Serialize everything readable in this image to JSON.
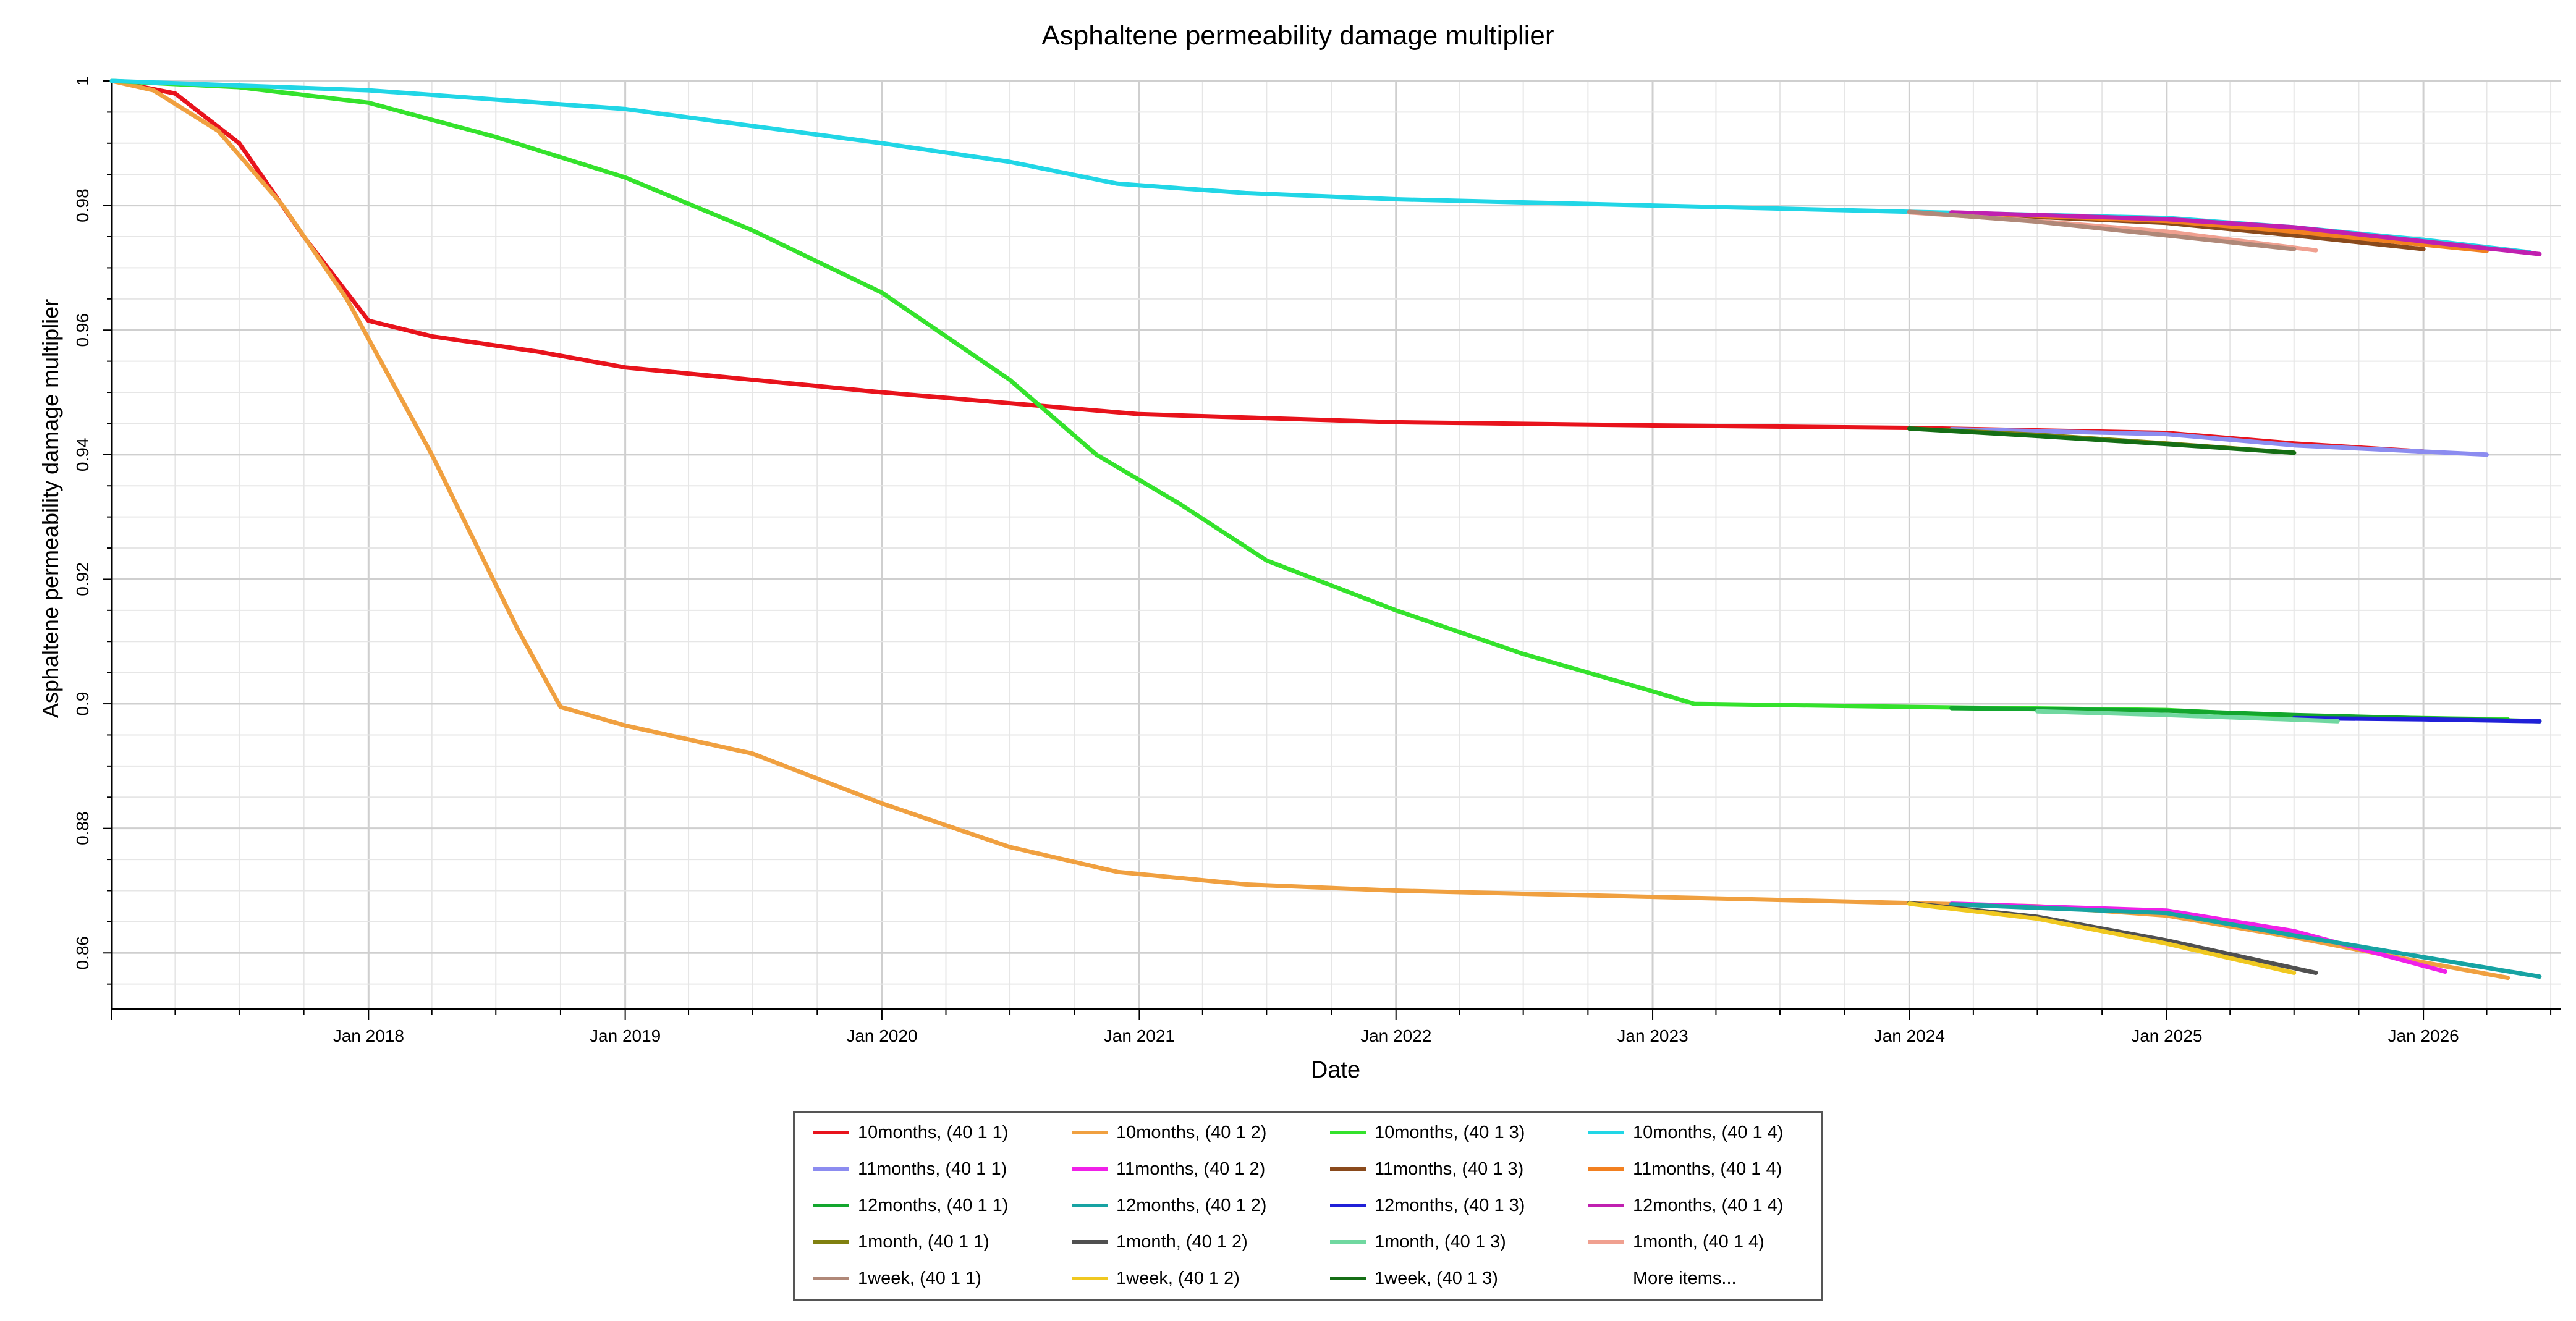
{
  "chart_data": {
    "type": "line",
    "title": "Asphaltene permeability damage multiplier",
    "xlabel": "Date",
    "ylabel": "Asphaltene permeability damage multiplier",
    "xlim": [
      "2017-01-01",
      "2026-07-15"
    ],
    "ylim": [
      0.851,
      1.0
    ],
    "y_ticks": [
      1,
      0.98,
      0.96,
      0.94,
      0.92,
      0.9,
      0.88,
      0.86
    ],
    "y_tick_labels": [
      "1",
      "0.98",
      "0.96",
      "0.94",
      "0.92",
      "0.9",
      "0.88",
      "0.86"
    ],
    "x_ticks": [
      "2018-01-01",
      "2019-01-01",
      "2020-01-01",
      "2021-01-01",
      "2022-01-01",
      "2023-01-01",
      "2024-01-01",
      "2025-01-01",
      "2026-01-01"
    ],
    "x_tick_labels": [
      "Jan 2018",
      "Jan 2019",
      "Jan 2020",
      "Jan 2021",
      "Jan 2022",
      "Jan 2023",
      "Jan 2024",
      "Jan 2025",
      "Jan 2026"
    ],
    "grid": true,
    "legend_position": "bottom-center",
    "legend_more_label": "More items...",
    "series": [
      {
        "name": "10months, (40 1 1)",
        "color": "#e8131c",
        "points": [
          [
            "2017-01-01",
            1.0
          ],
          [
            "2017-04-01",
            0.998
          ],
          [
            "2017-07-01",
            0.99
          ],
          [
            "2017-10-01",
            0.975
          ],
          [
            "2018-01-01",
            0.9615
          ],
          [
            "2018-04-01",
            0.959
          ],
          [
            "2018-09-01",
            0.9565
          ],
          [
            "2019-01-01",
            0.954
          ],
          [
            "2020-01-01",
            0.95
          ],
          [
            "2021-01-01",
            0.9465
          ],
          [
            "2022-01-01",
            0.9452
          ],
          [
            "2023-01-01",
            0.9447
          ],
          [
            "2024-01-01",
            0.9443
          ],
          [
            "2025-01-01",
            0.9435
          ],
          [
            "2025-07-01",
            0.9418
          ],
          [
            "2026-01-01",
            0.9405
          ]
        ]
      },
      {
        "name": "10months, (40 1 2)",
        "color": "#f0a040",
        "points": [
          [
            "2017-01-01",
            1.0
          ],
          [
            "2017-03-01",
            0.9985
          ],
          [
            "2017-06-01",
            0.992
          ],
          [
            "2017-09-01",
            0.98
          ],
          [
            "2017-12-01",
            0.965
          ],
          [
            "2018-04-01",
            0.94
          ],
          [
            "2018-08-01",
            0.912
          ],
          [
            "2018-10-01",
            0.8995
          ],
          [
            "2019-01-01",
            0.8965
          ],
          [
            "2019-07-01",
            0.892
          ],
          [
            "2020-01-01",
            0.884
          ],
          [
            "2020-07-01",
            0.877
          ],
          [
            "2020-12-01",
            0.873
          ],
          [
            "2021-06-01",
            0.871
          ],
          [
            "2022-01-01",
            0.87
          ],
          [
            "2023-01-01",
            0.869
          ],
          [
            "2024-01-01",
            0.868
          ],
          [
            "2024-07-01",
            0.8675
          ],
          [
            "2025-01-01",
            0.866
          ],
          [
            "2025-07-01",
            0.8625
          ],
          [
            "2026-01-01",
            0.8585
          ],
          [
            "2026-05-01",
            0.856
          ]
        ]
      },
      {
        "name": "10months, (40 1 3)",
        "color": "#34e22c",
        "points": [
          [
            "2017-01-01",
            1.0
          ],
          [
            "2017-07-01",
            0.999
          ],
          [
            "2018-01-01",
            0.9965
          ],
          [
            "2018-07-01",
            0.991
          ],
          [
            "2019-01-01",
            0.9845
          ],
          [
            "2019-07-01",
            0.976
          ],
          [
            "2020-01-01",
            0.966
          ],
          [
            "2020-07-01",
            0.952
          ],
          [
            "2020-11-01",
            0.94
          ],
          [
            "2021-03-01",
            0.932
          ],
          [
            "2021-07-01",
            0.923
          ],
          [
            "2022-01-01",
            0.915
          ],
          [
            "2022-07-01",
            0.908
          ],
          [
            "2023-01-01",
            0.902
          ],
          [
            "2023-03-01",
            0.9
          ],
          [
            "2024-01-01",
            0.8995
          ],
          [
            "2025-01-01",
            0.899
          ],
          [
            "2025-07-01",
            0.898
          ],
          [
            "2026-05-01",
            0.8975
          ]
        ]
      },
      {
        "name": "10months, (40 1 4)",
        "color": "#21d6e6",
        "points": [
          [
            "2017-01-01",
            1.0
          ],
          [
            "2018-01-01",
            0.9985
          ],
          [
            "2019-01-01",
            0.9955
          ],
          [
            "2020-01-01",
            0.99
          ],
          [
            "2020-07-01",
            0.987
          ],
          [
            "2020-12-01",
            0.9835
          ],
          [
            "2021-06-01",
            0.982
          ],
          [
            "2022-01-01",
            0.981
          ],
          [
            "2023-01-01",
            0.98
          ],
          [
            "2024-01-01",
            0.979
          ],
          [
            "2024-07-01",
            0.9785
          ],
          [
            "2025-01-01",
            0.978
          ],
          [
            "2025-07-01",
            0.9765
          ],
          [
            "2026-01-01",
            0.9745
          ],
          [
            "2026-06-01",
            0.9725
          ]
        ]
      },
      {
        "name": "11months, (40 1 1)",
        "color": "#8c8cf0",
        "points": [
          [
            "2024-03-01",
            0.9441
          ],
          [
            "2025-01-01",
            0.9433
          ],
          [
            "2025-07-01",
            0.9415
          ],
          [
            "2026-04-01",
            0.94
          ]
        ]
      },
      {
        "name": "11months, (40 1 2)",
        "color": "#f020e8",
        "points": [
          [
            "2024-03-01",
            0.8679
          ],
          [
            "2025-01-01",
            0.8668
          ],
          [
            "2025-07-01",
            0.8635
          ],
          [
            "2026-02-01",
            0.857
          ]
        ]
      },
      {
        "name": "11months, (40 1 3)",
        "color": "#8a4a1c",
        "points": [
          [
            "2024-03-01",
            0.9788
          ],
          [
            "2025-01-01",
            0.9772
          ],
          [
            "2025-07-01",
            0.9752
          ],
          [
            "2026-01-01",
            0.973
          ]
        ]
      },
      {
        "name": "11months, (40 1 4)",
        "color": "#f28020",
        "points": [
          [
            "2024-03-01",
            0.9789
          ],
          [
            "2025-01-01",
            0.9775
          ],
          [
            "2025-07-01",
            0.9758
          ],
          [
            "2026-04-01",
            0.9727
          ]
        ]
      },
      {
        "name": "12months, (40 1 1)",
        "color": "#13a62e",
        "points": [
          [
            "2024-03-01",
            0.8993
          ],
          [
            "2025-01-01",
            0.8989
          ],
          [
            "2025-07-01",
            0.8982
          ],
          [
            "2026-06-15",
            0.8972
          ]
        ]
      },
      {
        "name": "12months, (40 1 2)",
        "color": "#17a3a3",
        "points": [
          [
            "2024-03-01",
            0.8678
          ],
          [
            "2025-01-01",
            0.8664
          ],
          [
            "2025-07-01",
            0.8628
          ],
          [
            "2026-06-15",
            0.8562
          ]
        ]
      },
      {
        "name": "12months, (40 1 3)",
        "color": "#2020d8",
        "points": [
          [
            "2025-07-01",
            0.8977
          ],
          [
            "2026-01-01",
            0.8975
          ],
          [
            "2026-06-15",
            0.8972
          ]
        ]
      },
      {
        "name": "12months, (40 1 4)",
        "color": "#c020b0",
        "points": [
          [
            "2024-03-01",
            0.9789
          ],
          [
            "2025-01-01",
            0.9778
          ],
          [
            "2025-07-01",
            0.9765
          ],
          [
            "2026-06-15",
            0.9722
          ]
        ]
      },
      {
        "name": "1month, (40 1 1)",
        "color": "#808010",
        "points": [
          [
            "2024-01-01",
            0.9442
          ],
          [
            "2024-07-01",
            0.9432
          ],
          [
            "2025-01-01",
            0.9418
          ],
          [
            "2025-07-01",
            0.9403
          ]
        ]
      },
      {
        "name": "1month, (40 1 2)",
        "color": "#505050",
        "points": [
          [
            "2024-01-01",
            0.868
          ],
          [
            "2024-07-01",
            0.8658
          ],
          [
            "2025-01-01",
            0.862
          ],
          [
            "2025-08-01",
            0.8568
          ]
        ]
      },
      {
        "name": "1month, (40 1 3)",
        "color": "#70d8a0",
        "points": [
          [
            "2024-07-01",
            0.8988
          ],
          [
            "2025-01-01",
            0.8982
          ],
          [
            "2025-09-01",
            0.8972
          ]
        ]
      },
      {
        "name": "1month, (40 1 4)",
        "color": "#f0a090",
        "points": [
          [
            "2024-01-01",
            0.9789
          ],
          [
            "2024-07-01",
            0.9775
          ],
          [
            "2025-01-01",
            0.9758
          ],
          [
            "2025-08-01",
            0.9728
          ]
        ]
      },
      {
        "name": "1week, (40 1 1)",
        "color": "#b08878",
        "points": [
          [
            "2024-01-01",
            0.979
          ],
          [
            "2024-07-01",
            0.9774
          ],
          [
            "2025-01-01",
            0.9752
          ],
          [
            "2025-07-01",
            0.973
          ]
        ]
      },
      {
        "name": "1week, (40 1 2)",
        "color": "#f0c820",
        "points": [
          [
            "2024-01-01",
            0.8679
          ],
          [
            "2024-07-01",
            0.8655
          ],
          [
            "2025-01-01",
            0.8615
          ],
          [
            "2025-07-01",
            0.8568
          ]
        ]
      },
      {
        "name": "1week, (40 1 3)",
        "color": "#156e15",
        "points": [
          [
            "2024-01-01",
            0.9442
          ],
          [
            "2024-07-01",
            0.943
          ],
          [
            "2025-01-01",
            0.9417
          ],
          [
            "2025-07-01",
            0.9403
          ]
        ]
      }
    ]
  }
}
